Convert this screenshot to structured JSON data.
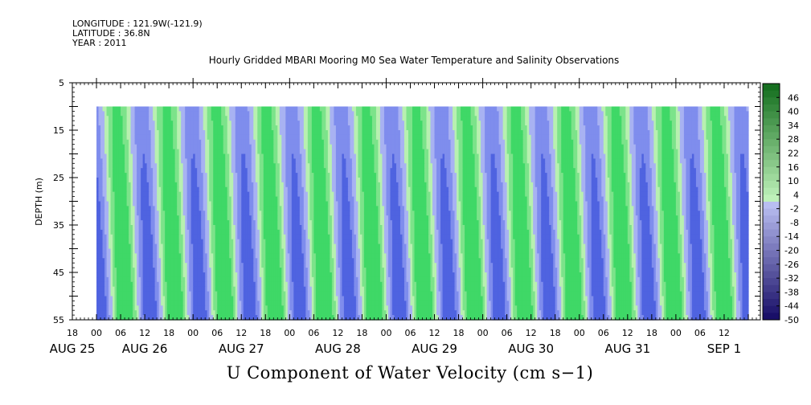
{
  "header": {
    "longitude": "LONGITUDE : 121.9W(-121.9)",
    "latitude": "LATITUDE : 36.8N",
    "year": "YEAR : 2011"
  },
  "chart_data": {
    "type": "heatmap",
    "title": "Hourly Gridded MBARI Mooring M0 Sea Water Temperature and Salinity Observations",
    "variable_label": "U Component of Water Velocity (cm s−1)",
    "ylabel": "DEPTH (m)",
    "ylim": [
      55,
      5
    ],
    "y_ticks": [
      5,
      15,
      25,
      35,
      45,
      55
    ],
    "data_depth_range": [
      10,
      55
    ],
    "x_range_hours": [
      -6,
      165
    ],
    "data_time_range_hours": [
      0,
      162
    ],
    "x_tick_labels": [
      {
        "t": -6,
        "label": "18"
      },
      {
        "t": 0,
        "label": "00"
      },
      {
        "t": 6,
        "label": "06"
      },
      {
        "t": 12,
        "label": "12"
      },
      {
        "t": 18,
        "label": "18"
      },
      {
        "t": 24,
        "label": "00"
      },
      {
        "t": 30,
        "label": "06"
      },
      {
        "t": 36,
        "label": "12"
      },
      {
        "t": 42,
        "label": "18"
      },
      {
        "t": 48,
        "label": "00"
      },
      {
        "t": 54,
        "label": "06"
      },
      {
        "t": 60,
        "label": "12"
      },
      {
        "t": 66,
        "label": "18"
      },
      {
        "t": 72,
        "label": "00"
      },
      {
        "t": 78,
        "label": "06"
      },
      {
        "t": 84,
        "label": "12"
      },
      {
        "t": 90,
        "label": "18"
      },
      {
        "t": 96,
        "label": "00"
      },
      {
        "t": 102,
        "label": "06"
      },
      {
        "t": 108,
        "label": "12"
      },
      {
        "t": 114,
        "label": "18"
      },
      {
        "t": 120,
        "label": "00"
      },
      {
        "t": 126,
        "label": "06"
      },
      {
        "t": 132,
        "label": "12"
      },
      {
        "t": 138,
        "label": "18"
      },
      {
        "t": 144,
        "label": "00"
      },
      {
        "t": 150,
        "label": "06"
      },
      {
        "t": 156,
        "label": "12"
      }
    ],
    "date_labels": [
      {
        "t": -6,
        "label": "AUG 25"
      },
      {
        "t": 12,
        "label": "AUG 26"
      },
      {
        "t": 36,
        "label": "AUG 27"
      },
      {
        "t": 60,
        "label": "AUG 28"
      },
      {
        "t": 84,
        "label": "AUG 29"
      },
      {
        "t": 108,
        "label": "AUG 30"
      },
      {
        "t": 132,
        "label": "AUG 31"
      },
      {
        "t": 156,
        "label": "SEP  1"
      }
    ],
    "colorbar": {
      "labels": [
        "46",
        "40",
        "34",
        "28",
        "22",
        "16",
        "10",
        "4",
        "-2",
        "-8",
        "-14",
        "-20",
        "-26",
        "-32",
        "-38",
        "-44",
        "-50"
      ],
      "range": [
        -50,
        52
      ],
      "step": 3
    },
    "pattern": {
      "period_hours": 12.4,
      "phase_hours": 5.0,
      "depth_tilt_hours": 2.2,
      "amplitude": 7,
      "mean_offset": 0.5
    },
    "colors": {
      "background": "#ffffff",
      "light_blue": "#a8b2f2",
      "mid_blue": "#7f8ded",
      "deep_blue": "#4f63e0",
      "pale_green": "#b8f0b0",
      "light_green": "#7ce38a",
      "mid_green": "#3fd867"
    }
  }
}
